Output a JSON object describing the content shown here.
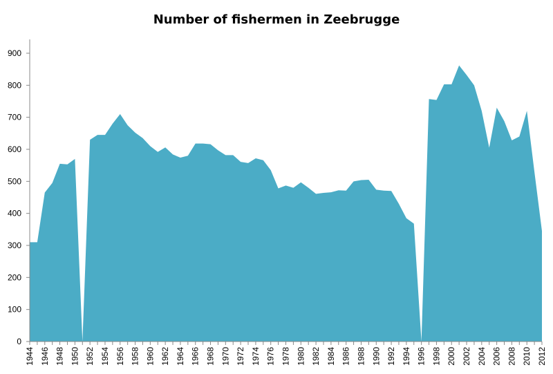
{
  "chart_data": {
    "type": "area",
    "title": "Number of fishermen in Zeebrugge",
    "xlabel": "",
    "ylabel": "",
    "ylim": [
      0,
      900
    ],
    "yticks": [
      0,
      100,
      200,
      300,
      400,
      500,
      600,
      700,
      800,
      900
    ],
    "xlim": [
      1944,
      2012
    ],
    "xticks": [
      1944,
      1946,
      1948,
      1950,
      1952,
      1954,
      1956,
      1958,
      1960,
      1962,
      1964,
      1966,
      1968,
      1970,
      1972,
      1974,
      1976,
      1978,
      1980,
      1982,
      1984,
      1986,
      1988,
      1990,
      1992,
      1994,
      1996,
      1998,
      2000,
      2002,
      2004,
      2006,
      2008,
      2010,
      2012
    ],
    "grid": false,
    "legend": "none",
    "color": "#4bacc6",
    "x": [
      1944,
      1945,
      1946,
      1947,
      1948,
      1949,
      1950,
      1951,
      1952,
      1953,
      1954,
      1955,
      1956,
      1957,
      1958,
      1959,
      1960,
      1961,
      1962,
      1963,
      1964,
      1965,
      1966,
      1967,
      1968,
      1969,
      1970,
      1971,
      1972,
      1973,
      1974,
      1975,
      1976,
      1977,
      1978,
      1979,
      1980,
      1981,
      1982,
      1983,
      1984,
      1985,
      1986,
      1987,
      1988,
      1989,
      1990,
      1991,
      1992,
      1993,
      1994,
      1995,
      1996,
      1997,
      1998,
      1999,
      2000,
      2001,
      2002,
      2003,
      2004,
      2005,
      2006,
      2007,
      2008,
      2009,
      2010,
      2011,
      2012
    ],
    "values": [
      310,
      310,
      465,
      495,
      555,
      553,
      570,
      0,
      630,
      645,
      645,
      680,
      710,
      675,
      652,
      635,
      610,
      592,
      606,
      584,
      574,
      580,
      618,
      618,
      616,
      597,
      582,
      582,
      561,
      557,
      572,
      566,
      535,
      478,
      487,
      480,
      497,
      480,
      461,
      464,
      466,
      472,
      471,
      500,
      504,
      505,
      474,
      471,
      470,
      430,
      385,
      368,
      0,
      757,
      754,
      803,
      803,
      862,
      832,
      800,
      720,
      605,
      730,
      688,
      628,
      640,
      720,
      530,
      345
    ]
  }
}
